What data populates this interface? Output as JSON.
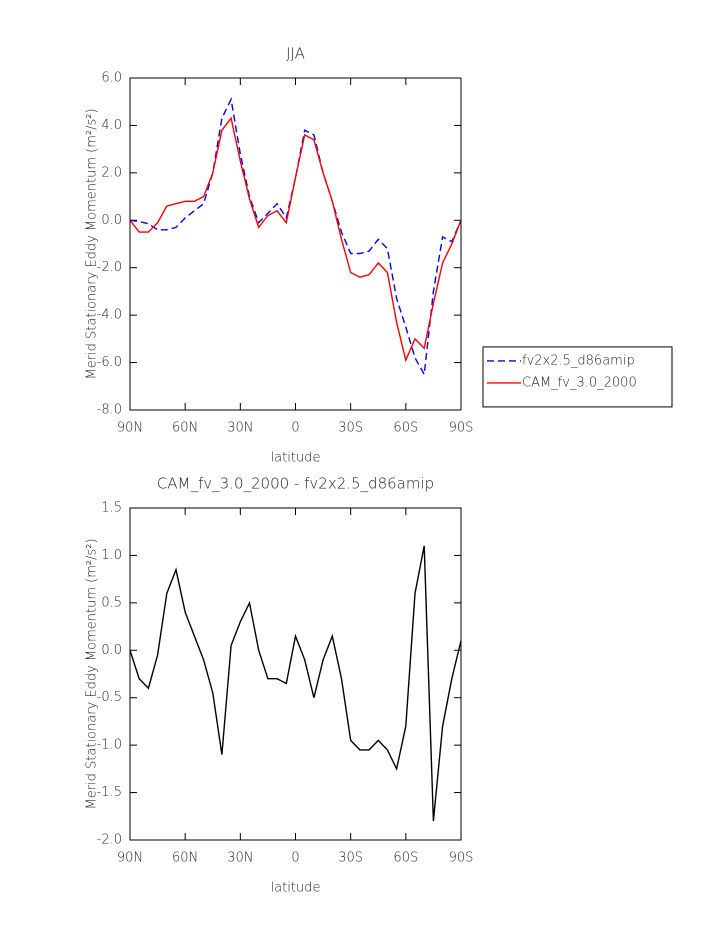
{
  "chart_data": [
    {
      "type": "line",
      "title": "JJA",
      "x_label": "latitude",
      "y_label": "Merid Stationary Eddy Momentum (m²/s²)",
      "x": [
        90,
        85,
        80,
        75,
        70,
        65,
        60,
        55,
        50,
        45,
        40,
        35,
        30,
        25,
        20,
        15,
        10,
        5,
        0,
        -5,
        -10,
        -15,
        -20,
        -25,
        -30,
        -35,
        -40,
        -45,
        -50,
        -55,
        -60,
        -65,
        -70,
        -75,
        -80,
        -85,
        -90
      ],
      "xlim": [
        90,
        -90
      ],
      "xticks": [
        {
          "value": 90,
          "label": "90N"
        },
        {
          "value": 60,
          "label": "60N"
        },
        {
          "value": 30,
          "label": "30N"
        },
        0,
        {
          "value": -30,
          "label": "30S"
        },
        {
          "value": -60,
          "label": "60S"
        },
        {
          "value": -90,
          "label": "90S"
        }
      ],
      "ylim": [
        -8,
        6
      ],
      "yticks": [
        {
          "value": 6,
          "label": "6.0"
        },
        {
          "value": 4,
          "label": "4.0"
        },
        {
          "value": 2,
          "label": "2.0"
        },
        {
          "value": 0,
          "label": "0.0"
        },
        {
          "value": -2,
          "label": "-2.0"
        },
        {
          "value": -4,
          "label": "-4.0"
        },
        {
          "value": -6,
          "label": "-6.0"
        },
        {
          "value": -8,
          "label": "-8.0"
        }
      ],
      "legend_position": "right",
      "series": [
        {
          "name": "fv2x2.5_d86amip",
          "color": "#0000ff",
          "dash": true,
          "values": [
            0.0,
            -0.05,
            -0.15,
            -0.4,
            -0.4,
            -0.3,
            0.1,
            0.4,
            0.7,
            2.0,
            4.3,
            5.1,
            2.8,
            1.0,
            -0.1,
            0.3,
            0.7,
            0.1,
            1.8,
            3.8,
            3.6,
            2.0,
            0.8,
            -0.5,
            -1.4,
            -1.4,
            -1.3,
            -0.8,
            -1.2,
            -3.3,
            -4.5,
            -5.8,
            -6.5,
            -3.0,
            -0.7,
            -0.9,
            0.0
          ]
        },
        {
          "name": "CAM_fv_3.0_2000",
          "color": "#ff0000",
          "dash": false,
          "values": [
            0.0,
            -0.5,
            -0.5,
            -0.1,
            0.6,
            0.7,
            0.8,
            0.8,
            1.0,
            2.0,
            3.8,
            4.3,
            2.5,
            0.9,
            -0.3,
            0.2,
            0.4,
            -0.1,
            1.8,
            3.6,
            3.4,
            2.0,
            0.8,
            -0.8,
            -2.2,
            -2.4,
            -2.3,
            -1.8,
            -2.2,
            -4.3,
            -5.9,
            -5.0,
            -5.4,
            -3.5,
            -1.8,
            -1.0,
            0.0
          ]
        }
      ]
    },
    {
      "type": "line",
      "title": "CAM_fv_3.0_2000 - fv2x2.5_d86amip",
      "x_label": "latitude",
      "y_label": "Merid Stationary Eddy Momentum (m²/s²)",
      "x": [
        90,
        85,
        80,
        75,
        70,
        65,
        60,
        55,
        50,
        45,
        40,
        35,
        30,
        25,
        20,
        15,
        10,
        5,
        0,
        -5,
        -10,
        -15,
        -20,
        -25,
        -30,
        -35,
        -40,
        -45,
        -50,
        -55,
        -60,
        -65,
        -70,
        -75,
        -80,
        -85,
        -90
      ],
      "xlim": [
        90,
        -90
      ],
      "xticks": [
        {
          "value": 90,
          "label": "90N"
        },
        {
          "value": 60,
          "label": "60N"
        },
        {
          "value": 30,
          "label": "30N"
        },
        0,
        {
          "value": -30,
          "label": "30S"
        },
        {
          "value": -60,
          "label": "60S"
        },
        {
          "value": -90,
          "label": "90S"
        }
      ],
      "ylim": [
        -2,
        1.5
      ],
      "yticks": [
        1.5,
        {
          "value": 1,
          "label": "1.0"
        },
        0.5,
        {
          "value": 0,
          "label": "0.0"
        },
        -0.5,
        {
          "value": -1,
          "label": "-1.0"
        },
        -1.5,
        {
          "value": -2,
          "label": "-2.0"
        }
      ],
      "series": [
        {
          "color": "#000000",
          "dash": false,
          "values": [
            0.0,
            -0.3,
            -0.4,
            -0.05,
            0.6,
            0.85,
            0.4,
            0.15,
            -0.1,
            -0.45,
            -1.1,
            0.05,
            0.3,
            0.5,
            0.0,
            -0.3,
            -0.3,
            -0.35,
            0.15,
            -0.1,
            -0.5,
            -0.1,
            0.15,
            -0.3,
            -0.95,
            -1.05,
            -1.05,
            -0.95,
            -1.05,
            -1.25,
            -0.8,
            0.6,
            1.1,
            -1.8,
            -0.8,
            -0.3,
            0.1
          ]
        }
      ]
    }
  ]
}
